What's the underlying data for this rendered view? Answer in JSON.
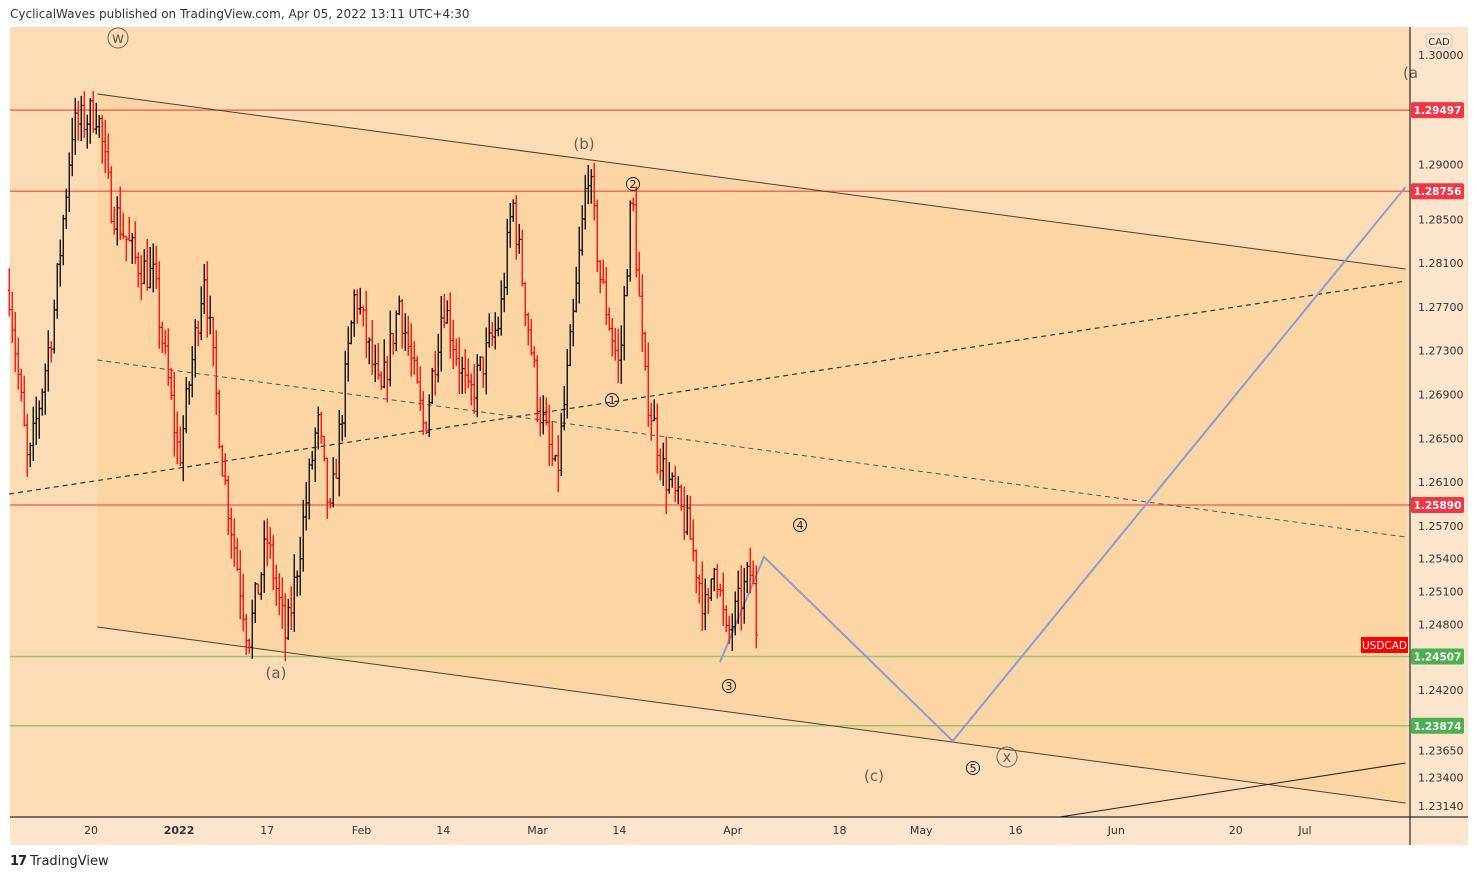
{
  "header": {
    "text": "CyclicalWaves published on TradingView.com, Apr 05, 2022 13:11 UTC+4:30"
  },
  "footer": {
    "logo_text": "TradingView"
  },
  "colors": {
    "bg": "#fcdcb4",
    "channel_fill": "#fbd5a4",
    "axis_bg": "#fce5cd",
    "up": "#000000",
    "down": "#ff0000",
    "resistance": "#f26b5b",
    "support": "#9cc26a",
    "projection": "#8f9bd1",
    "label_red": "#f23645",
    "label_green": "#4caf50",
    "symbol_red": "#ff0000"
  },
  "chart_data": {
    "type": "ohlc",
    "symbol": "USDCAD",
    "currency": "CAD",
    "price_path": [
      [
        "2021-12-07",
        1.2785
      ],
      [
        "2021-12-10",
        1.2621
      ],
      [
        "2021-12-14",
        1.2758
      ],
      [
        "2021-12-17",
        1.2932
      ],
      [
        "2021-12-21",
        1.295
      ],
      [
        "2021-12-23",
        1.2868
      ],
      [
        "2021-12-27",
        1.2813
      ],
      [
        "2021-12-30",
        1.2795
      ],
      [
        "2022-01-03",
        1.263
      ],
      [
        "2022-01-07",
        1.2804
      ],
      [
        "2022-01-10",
        1.2621
      ],
      [
        "2022-01-14",
        1.2466
      ],
      [
        "2022-01-17",
        1.2557
      ],
      [
        "2022-01-20",
        1.2466
      ],
      [
        "2022-01-21",
        1.2502
      ],
      [
        "2022-01-25",
        1.2666
      ],
      [
        "2022-01-27",
        1.2575
      ],
      [
        "2022-01-31",
        1.2785
      ],
      [
        "2022-02-04",
        1.2685
      ],
      [
        "2022-02-07",
        1.2776
      ],
      [
        "2022-02-11",
        1.2657
      ],
      [
        "2022-02-14",
        1.2776
      ],
      [
        "2022-02-18",
        1.2685
      ],
      [
        "2022-02-23",
        1.2758
      ],
      [
        "2022-02-25",
        1.2868
      ],
      [
        "2022-03-01",
        1.2685
      ],
      [
        "2022-03-04",
        1.2612
      ],
      [
        "2022-03-07",
        1.2776
      ],
      [
        "2022-03-09",
        1.29
      ],
      [
        "2022-03-11",
        1.2795
      ],
      [
        "2022-03-14",
        1.2712
      ],
      [
        "2022-03-16",
        1.2875
      ],
      [
        "2022-03-18",
        1.2703
      ],
      [
        "2022-03-21",
        1.2621
      ],
      [
        "2022-03-25",
        1.2566
      ],
      [
        "2022-03-28",
        1.2484
      ],
      [
        "2022-03-29",
        1.2548
      ],
      [
        "2022-03-31",
        1.2466
      ],
      [
        "2022-04-04",
        1.253
      ],
      [
        "2022-04-05",
        1.2461
      ]
    ],
    "price_ticks": [
      "1.30000",
      "1.29000",
      "1.28500",
      "1.28100",
      "1.27700",
      "1.27300",
      "1.26900",
      "1.26500",
      "1.26100",
      "1.25700",
      "1.25400",
      "1.25100",
      "1.24800",
      "1.24200",
      "1.23650",
      "1.23400",
      "1.23140"
    ],
    "time_ticks": [
      [
        "2021-12-20",
        "20"
      ],
      [
        "2022-01-03",
        "2022"
      ],
      [
        "2022-01-17",
        "17"
      ],
      [
        "2022-02-01",
        "Feb"
      ],
      [
        "2022-02-14",
        "14"
      ],
      [
        "2022-03-01",
        "Mar"
      ],
      [
        "2022-03-14",
        "14"
      ],
      [
        "2022-04-01",
        "Apr"
      ],
      [
        "2022-04-18",
        "18"
      ],
      [
        "2022-05-01",
        "May"
      ],
      [
        "2022-05-16",
        "16"
      ],
      [
        "2022-06-01",
        "Jun"
      ],
      [
        "2022-06-20",
        "20"
      ],
      [
        "2022-07-01",
        "Jul"
      ]
    ],
    "horizontal_levels": [
      {
        "price": "1.29497",
        "kind": "resistance"
      },
      {
        "price": "1.28756",
        "kind": "resistance"
      },
      {
        "price": "1.25890",
        "kind": "resistance"
      },
      {
        "price": "1.24507",
        "kind": "support"
      },
      {
        "price": "1.23874",
        "kind": "support"
      }
    ],
    "trendlines": {
      "channel_upper": [
        [
          "2021-12-21",
          1.29644
        ],
        [
          "2022-07-17",
          1.28046
        ]
      ],
      "channel_lower": [
        [
          "2021-12-21",
          1.24776
        ],
        [
          "2022-07-17",
          1.23169
        ]
      ],
      "dashed_rising": [
        [
          "2021-12-07",
          1.25991
        ],
        [
          "2022-07-17",
          1.27936
        ]
      ],
      "dashed_falling": [
        [
          "2021-12-21",
          1.27215
        ],
        [
          "2022-07-17",
          1.25598
        ]
      ],
      "bottom_rising": [
        [
          "2022-05-23",
          1.23041
        ],
        [
          "2022-07-17",
          1.23534
        ]
      ],
      "projection": [
        [
          "2022-03-30",
          1.24457
        ],
        [
          "2022-04-06",
          1.25416
        ],
        [
          "2022-05-06",
          1.23735
        ],
        [
          "2022-07-17",
          1.28795
        ]
      ]
    },
    "wave_labels": {
      "w": "w",
      "b": "(b)",
      "a": "(a)",
      "c": "(c)",
      "x": "x",
      "a_right": "(a",
      "n1": "1",
      "n2": "2",
      "n3": "3",
      "n4": "4",
      "n5": "5"
    },
    "symbol_label": "USDCAD"
  }
}
